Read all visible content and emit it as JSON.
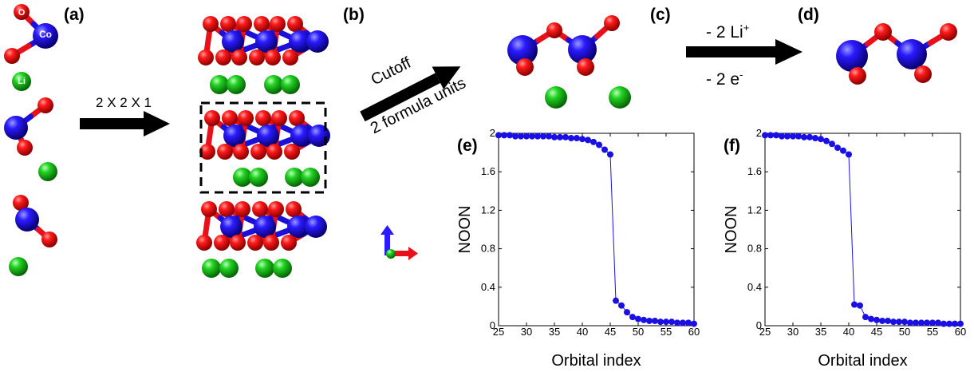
{
  "panels": {
    "a": "(a)",
    "b": "(b)",
    "c": "(c)",
    "d": "(d)",
    "e": "(e)",
    "f": "(f)"
  },
  "atoms": {
    "oxygen": "O",
    "cobalt": "Co",
    "lithium": "Li"
  },
  "colors": {
    "oxygen": "#e8101a",
    "cobalt": "#1a10d8",
    "lithium": "#19b419",
    "series": "#1a10e6"
  },
  "arrows": {
    "supercell": "2 X 2 X 1",
    "cutoff_line1": "Cutoff",
    "cutoff_line2": "2 formula units",
    "delithiation_top": "- 2 Li",
    "delithiation_top_sup": "+",
    "delithiation_bottom": "- 2 e",
    "delithiation_bottom_sup": "-"
  },
  "chart_data": [
    {
      "panel": "(e)",
      "type": "line",
      "xlabel": "Orbital index",
      "ylabel": "NOON",
      "xlim": [
        25,
        60
      ],
      "ylim": [
        0,
        2
      ],
      "xticks": [
        25,
        30,
        35,
        40,
        45,
        50,
        55,
        60
      ],
      "yticks": [
        0,
        0.4,
        0.8,
        1.2,
        1.6,
        2
      ],
      "x": [
        25,
        26,
        27,
        28,
        29,
        30,
        31,
        32,
        33,
        34,
        35,
        36,
        37,
        38,
        39,
        40,
        41,
        42,
        43,
        44,
        45,
        46,
        47,
        48,
        49,
        50,
        51,
        52,
        53,
        54,
        55,
        56,
        57,
        58,
        59,
        60
      ],
      "y": [
        1.98,
        1.98,
        1.98,
        1.97,
        1.97,
        1.97,
        1.97,
        1.97,
        1.97,
        1.97,
        1.96,
        1.96,
        1.96,
        1.95,
        1.95,
        1.94,
        1.93,
        1.91,
        1.88,
        1.83,
        1.78,
        0.26,
        0.21,
        0.14,
        0.09,
        0.07,
        0.06,
        0.05,
        0.05,
        0.04,
        0.04,
        0.04,
        0.03,
        0.03,
        0.03,
        0.02
      ]
    },
    {
      "panel": "(f)",
      "type": "line",
      "xlabel": "Orbital index",
      "ylabel": "NOON",
      "xlim": [
        25,
        60
      ],
      "ylim": [
        0,
        2
      ],
      "xticks": [
        25,
        30,
        35,
        40,
        45,
        50,
        55,
        60
      ],
      "yticks": [
        0,
        0.4,
        0.8,
        1.2,
        1.6,
        2
      ],
      "x": [
        25,
        26,
        27,
        28,
        29,
        30,
        31,
        32,
        33,
        34,
        35,
        36,
        37,
        38,
        39,
        40,
        41,
        42,
        43,
        44,
        45,
        46,
        47,
        48,
        49,
        50,
        51,
        52,
        53,
        54,
        55,
        56,
        57,
        58,
        59,
        60
      ],
      "y": [
        1.98,
        1.98,
        1.98,
        1.97,
        1.97,
        1.97,
        1.97,
        1.96,
        1.96,
        1.95,
        1.94,
        1.92,
        1.89,
        1.85,
        1.82,
        1.78,
        0.22,
        0.21,
        0.09,
        0.07,
        0.06,
        0.05,
        0.05,
        0.04,
        0.04,
        0.04,
        0.03,
        0.03,
        0.03,
        0.03,
        0.03,
        0.03,
        0.02,
        0.02,
        0.02,
        0.02
      ]
    }
  ]
}
